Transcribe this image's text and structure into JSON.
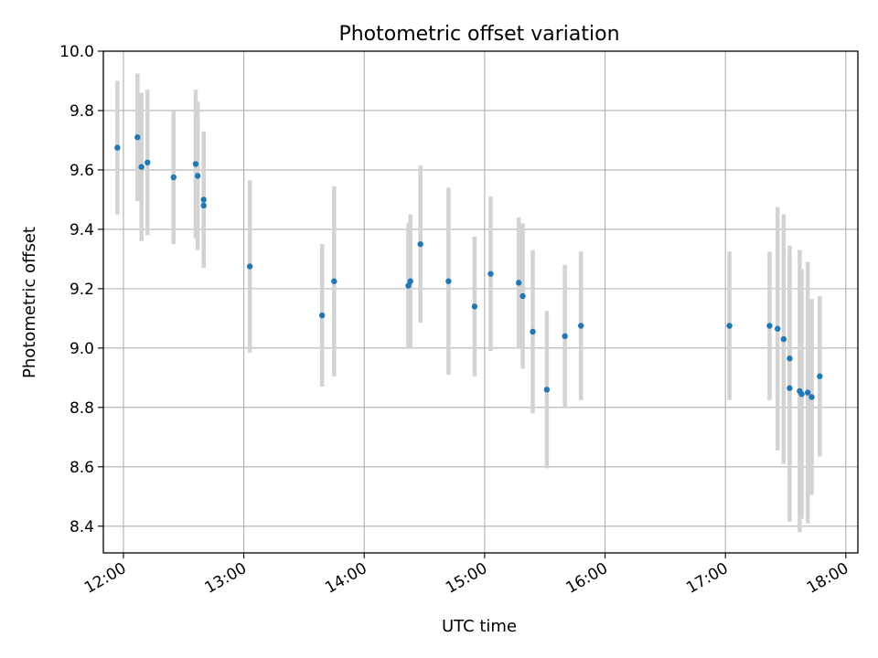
{
  "chart_data": {
    "type": "scatter",
    "title": "Photometric offset variation",
    "xlabel": "UTC time",
    "ylabel": "Photometric offset",
    "xlim": [
      "11:50",
      "18:06"
    ],
    "ylim": [
      8.31,
      10.0
    ],
    "x_ticks": [
      "12:00",
      "13:00",
      "14:00",
      "15:00",
      "16:00",
      "17:00",
      "18:00"
    ],
    "y_ticks": [
      8.4,
      8.6,
      8.8,
      9.0,
      9.2,
      9.4,
      9.6,
      9.8,
      10.0
    ],
    "grid": true,
    "colors": {
      "marker": "#1f77b4",
      "errorbar": "#d3d3d3",
      "grid": "#b0b0b0"
    },
    "series": [
      {
        "points": [
          {
            "x": "11:57",
            "y": 9.675,
            "err": 0.225
          },
          {
            "x": "12:07",
            "y": 9.71,
            "err": 0.215
          },
          {
            "x": "12:09",
            "y": 9.61,
            "err": 0.25
          },
          {
            "x": "12:12",
            "y": 9.625,
            "err": 0.245
          },
          {
            "x": "12:25",
            "y": 9.575,
            "err": 0.225
          },
          {
            "x": "12:36",
            "y": 9.62,
            "err": 0.25
          },
          {
            "x": "12:37",
            "y": 9.58,
            "err": 0.25
          },
          {
            "x": "12:40",
            "y": 9.5,
            "err": 0.23
          },
          {
            "x": "12:40",
            "y": 9.48,
            "err": 0.2
          },
          {
            "x": "13:03",
            "y": 9.275,
            "err": 0.29
          },
          {
            "x": "13:39",
            "y": 9.11,
            "err": 0.24
          },
          {
            "x": "13:45",
            "y": 9.225,
            "err": 0.32
          },
          {
            "x": "14:22",
            "y": 9.21,
            "err": 0.21
          },
          {
            "x": "14:23",
            "y": 9.225,
            "err": 0.225
          },
          {
            "x": "14:28",
            "y": 9.35,
            "err": 0.265
          },
          {
            "x": "14:42",
            "y": 9.225,
            "err": 0.315
          },
          {
            "x": "14:55",
            "y": 9.14,
            "err": 0.235
          },
          {
            "x": "15:03",
            "y": 9.25,
            "err": 0.26
          },
          {
            "x": "15:17",
            "y": 9.22,
            "err": 0.22
          },
          {
            "x": "15:19",
            "y": 9.175,
            "err": 0.245
          },
          {
            "x": "15:24",
            "y": 9.055,
            "err": 0.275
          },
          {
            "x": "15:31",
            "y": 8.86,
            "err": 0.265
          },
          {
            "x": "15:40",
            "y": 9.04,
            "err": 0.24
          },
          {
            "x": "15:48",
            "y": 9.075,
            "err": 0.25
          },
          {
            "x": "17:02",
            "y": 9.075,
            "err": 0.25
          },
          {
            "x": "17:22",
            "y": 9.075,
            "err": 0.25
          },
          {
            "x": "17:26",
            "y": 9.065,
            "err": 0.41
          },
          {
            "x": "17:29",
            "y": 9.03,
            "err": 0.42
          },
          {
            "x": "17:32",
            "y": 8.965,
            "err": 0.38
          },
          {
            "x": "17:32",
            "y": 8.865,
            "err": 0.45
          },
          {
            "x": "17:37",
            "y": 8.855,
            "err": 0.475
          },
          {
            "x": "17:38",
            "y": 8.845,
            "err": 0.42
          },
          {
            "x": "17:41",
            "y": 8.85,
            "err": 0.44
          },
          {
            "x": "17:43",
            "y": 8.835,
            "err": 0.33
          },
          {
            "x": "17:47",
            "y": 8.905,
            "err": 0.27
          }
        ]
      }
    ]
  }
}
